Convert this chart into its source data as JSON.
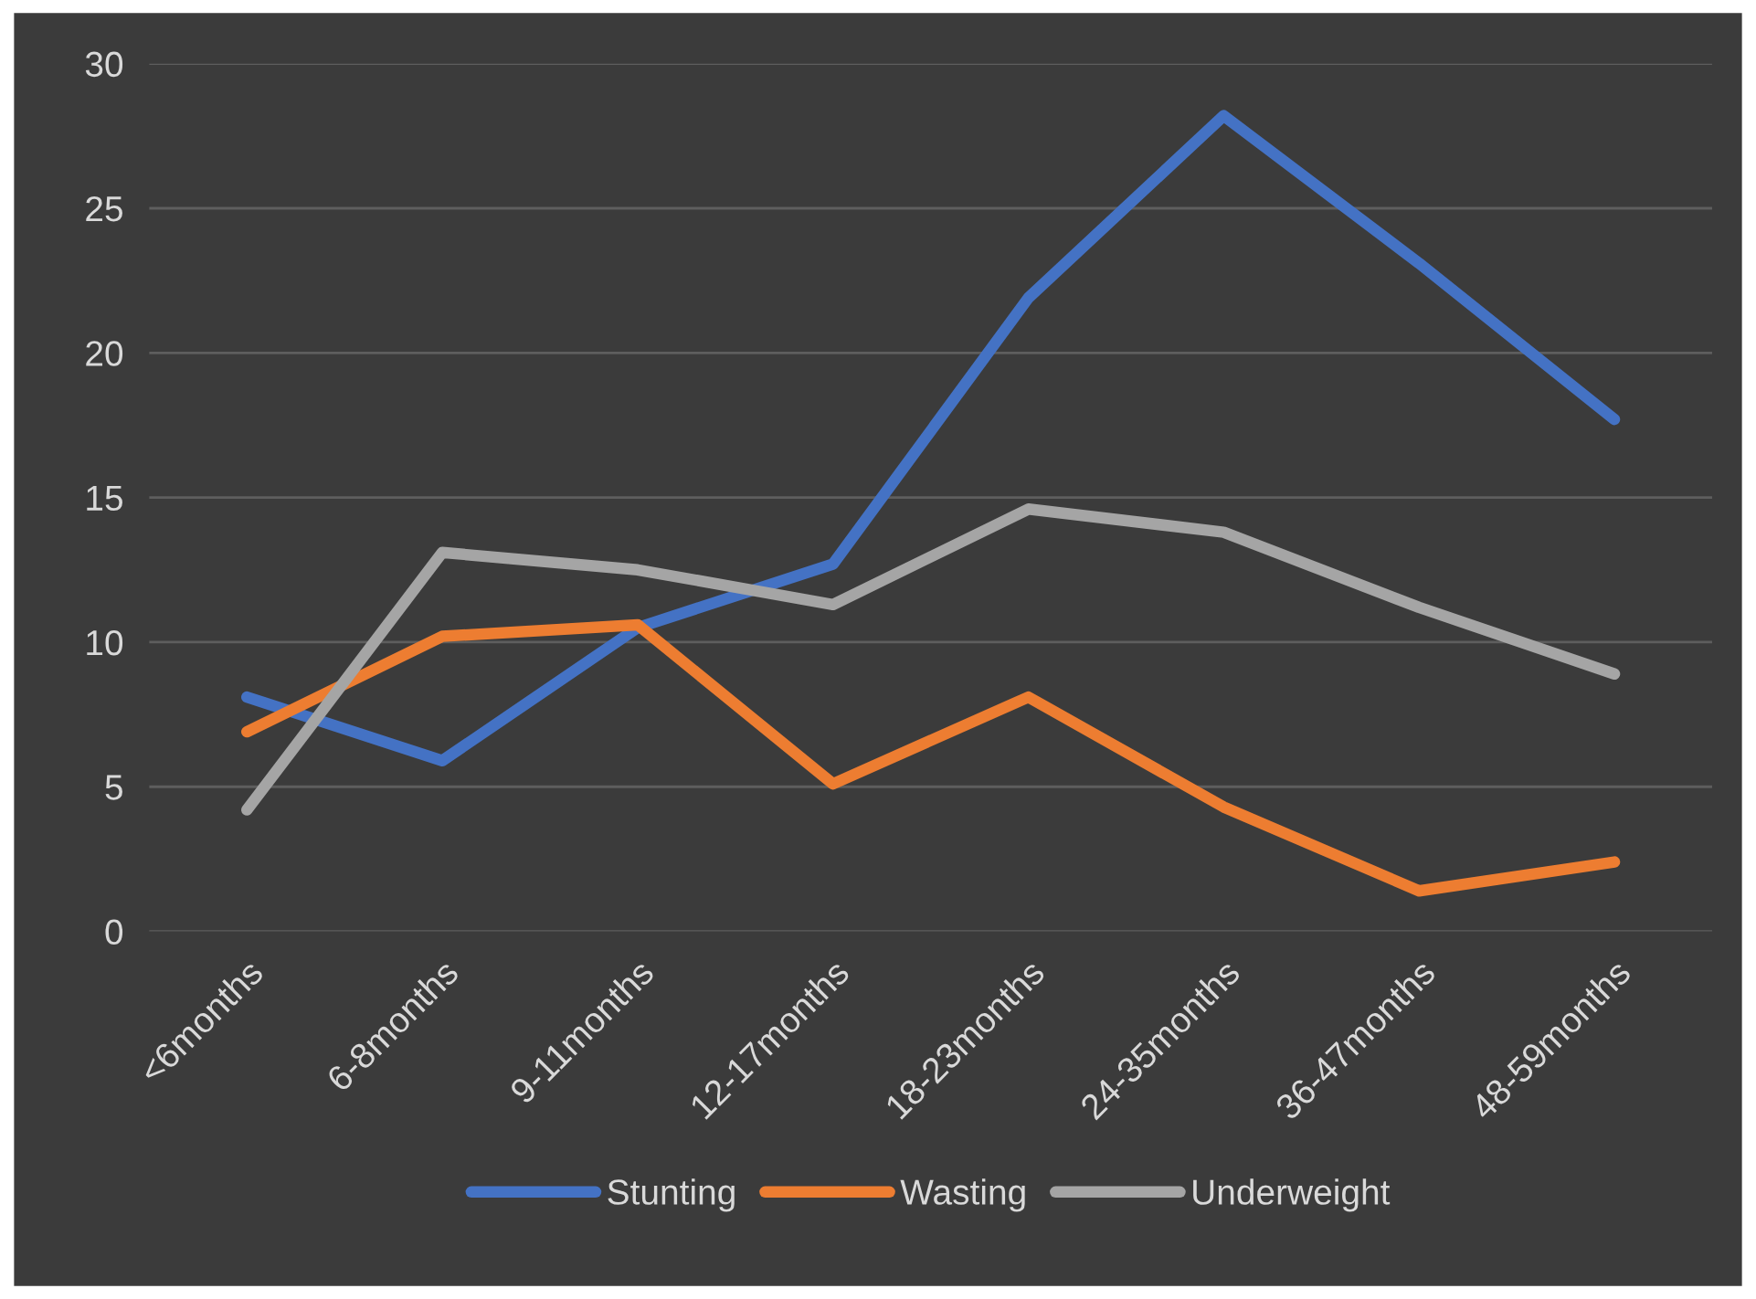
{
  "chart_data": {
    "type": "line",
    "categories": [
      "<6months",
      "6-8months",
      "9-11months",
      "12-17months",
      "18-23months",
      "24-35months",
      "36-47months",
      "48-59months"
    ],
    "series": [
      {
        "name": "Stunting",
        "color": "#4472c4",
        "values": [
          8.1,
          5.9,
          10.5,
          12.7,
          21.9,
          28.2,
          23.1,
          17.7
        ]
      },
      {
        "name": "Wasting",
        "color": "#ed7d31",
        "values": [
          6.9,
          10.2,
          10.6,
          5.1,
          8.1,
          4.3,
          1.4,
          2.4
        ]
      },
      {
        "name": "Underweight",
        "color": "#a5a5a5",
        "values": [
          4.2,
          13.1,
          12.5,
          11.3,
          14.6,
          13.8,
          11.2,
          8.9
        ]
      }
    ],
    "ylim": [
      0,
      30
    ],
    "yticks": [
      0,
      5,
      10,
      15,
      20,
      25,
      30
    ],
    "grid": "y",
    "legend": "bottom",
    "marker": "none",
    "line_style": "solid"
  }
}
